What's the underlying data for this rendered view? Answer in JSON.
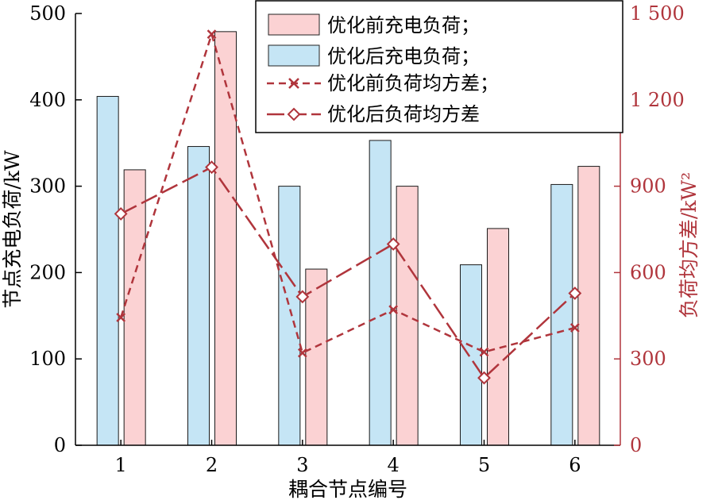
{
  "chart_data": {
    "type": "bar",
    "xlabel": "耦合节点编号",
    "ylabel_left": "节点充电负荷/kW",
    "ylabel_right": "负荷均方差/kW²",
    "categories": [
      "1",
      "2",
      "3",
      "4",
      "5",
      "6"
    ],
    "ylim_left": [
      0,
      500
    ],
    "yticks_left": [
      "0",
      "100",
      "200",
      "300",
      "400",
      "500"
    ],
    "ylim_right": [
      0,
      1500
    ],
    "yticks_right": [
      "0",
      "300",
      "600",
      "900",
      "1 200",
      "1 500"
    ],
    "grid": false,
    "legend_position": "top-right",
    "bar_series": [
      {
        "name": "优化后充电负荷；",
        "values": [
          404,
          346,
          300,
          353,
          209,
          302
        ]
      },
      {
        "name": "优化前充电负荷；",
        "values": [
          319,
          479,
          204,
          300,
          251,
          323
        ]
      }
    ],
    "line_series": [
      {
        "name": "优化前负荷均方差；",
        "marker": "x",
        "dash": "short",
        "points": [
          [
            1,
            444
          ],
          [
            2,
            1428
          ],
          [
            3,
            321
          ],
          [
            4,
            471
          ],
          [
            5,
            324
          ],
          [
            6,
            408
          ]
        ]
      },
      {
        "name": "优化后负荷均方差",
        "marker": "diamond",
        "dash": "long",
        "points": [
          [
            1,
            804
          ],
          [
            2,
            966
          ],
          [
            3,
            516
          ],
          [
            4,
            699
          ],
          [
            5,
            234
          ],
          [
            6,
            528
          ]
        ]
      }
    ],
    "colors": {
      "bar_after_fill": "#c5e5f5",
      "bar_before_fill": "#fbd2d3",
      "line": "#b0353c",
      "right_axis": "#b0353c",
      "axis": "#000000"
    }
  },
  "legend": {
    "items": [
      {
        "label": "优化前充电负荷；"
      },
      {
        "label": "优化后充电负荷；"
      },
      {
        "label": "优化前负荷均方差；"
      },
      {
        "label": "优化后负荷均方差"
      }
    ]
  }
}
